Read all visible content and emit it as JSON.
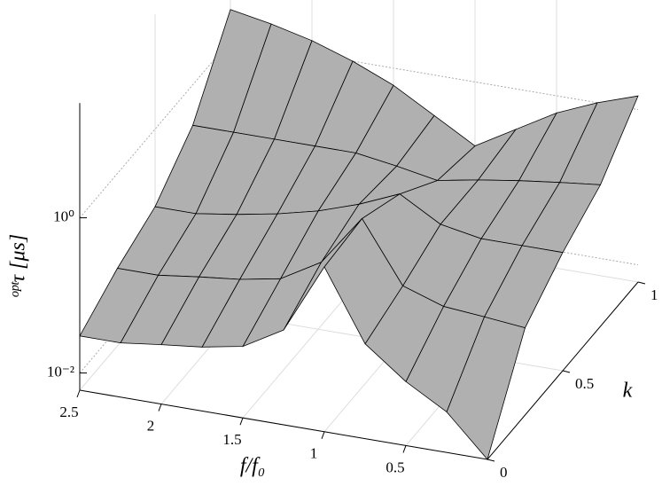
{
  "chart_data": {
    "type": "surface",
    "xlabel": "f/f₀",
    "ylabel": "k",
    "zlabel": "ᵒᵖᵗτ [μs]",
    "f": [
      0,
      0.25,
      0.5,
      0.75,
      1,
      1.25,
      1.5,
      1.75,
      2,
      2.25,
      2.5
    ],
    "k": [
      0,
      0.25,
      0.5,
      0.75,
      1
    ],
    "z": [
      [
        0.006,
        0.02,
        0.04,
        0.1,
        0.8,
        0.1,
        0.05,
        0.04,
        0.035,
        0.03,
        0.03
      ],
      [
        0.08,
        0.09,
        0.1,
        0.15,
        0.9,
        0.2,
        0.1,
        0.08,
        0.07,
        0.06,
        0.06
      ],
      [
        0.2,
        0.2,
        0.2,
        0.25,
        0.5,
        0.3,
        0.2,
        0.15,
        0.12,
        0.1,
        0.1
      ],
      [
        0.4,
        0.35,
        0.3,
        0.25,
        0.2,
        0.25,
        0.3,
        0.3,
        0.3,
        0.3,
        0.3
      ],
      [
        1.5,
        1.0,
        0.6,
        0.3,
        0.15,
        0.3,
        0.6,
        1.0,
        1.5,
        2,
        2.5
      ]
    ],
    "xlim": [
      0,
      2.5
    ],
    "ylim": [
      0,
      1
    ],
    "zlim": [
      0.006,
      30
    ],
    "zscale": "log",
    "xticks": [
      0.5,
      1,
      1.5,
      2,
      2.5
    ],
    "yticks": [
      0,
      0.5,
      1
    ],
    "zticks": [
      {
        "value": 0.01,
        "label": "10⁻²"
      },
      {
        "value": 1,
        "label": "10⁰"
      }
    ],
    "grid": true,
    "color": "#b0b0b0",
    "edgecolor": "#000000"
  }
}
